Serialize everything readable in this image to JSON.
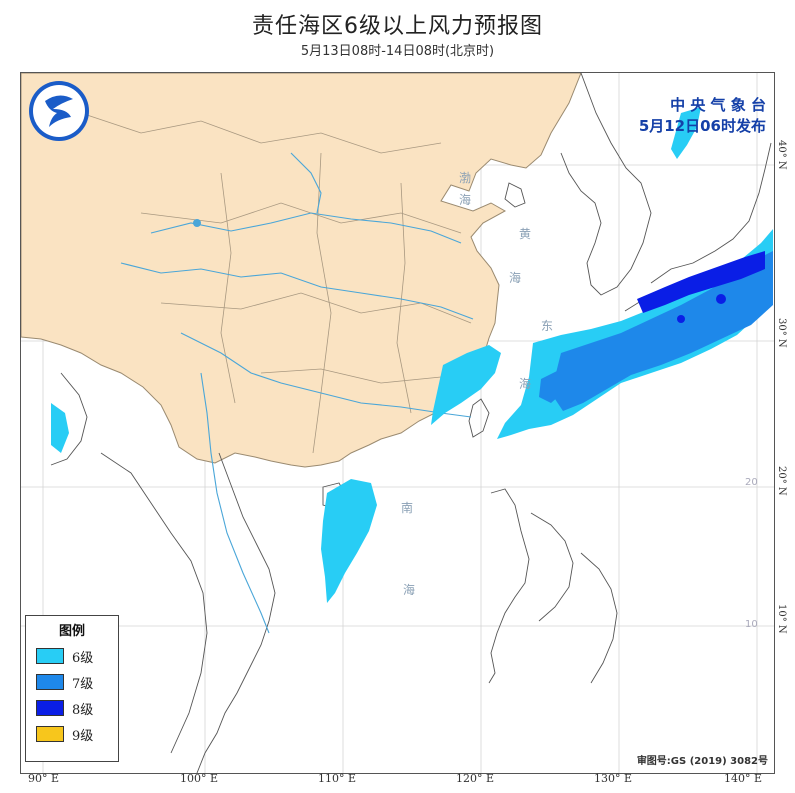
{
  "title": "责任海区6级以上风力预报图",
  "subtitle": "5月13日08时-14日08时(北京时)",
  "issuer": {
    "line1": "中 央 气 象 台",
    "line2": "5月12日06时发布"
  },
  "legend": {
    "title": "图例",
    "items": [
      {
        "label": "6级",
        "color": "#28cdf5"
      },
      {
        "label": "7级",
        "color": "#1e88ea"
      },
      {
        "label": "8级",
        "color": "#0a1ee6"
      },
      {
        "label": "9级",
        "color": "#f7c61c"
      }
    ]
  },
  "credit": "审图号:GS (2019) 3082号",
  "longitudes": [
    "90° E",
    "100° E",
    "110° E",
    "120° E",
    "130° E",
    "140° E"
  ],
  "latitudes": [
    "40° N",
    "30° N",
    "20° N",
    "10° N"
  ],
  "inner_latitudes": [
    "20",
    "10"
  ],
  "sea_labels": [
    "黄",
    "海",
    "东",
    "海",
    "南",
    "海",
    "渤",
    "海"
  ],
  "colors": {
    "land": "#fae3c2",
    "sea": "#ffffff",
    "river": "#4aa6d8",
    "border": "#9a8a70"
  }
}
